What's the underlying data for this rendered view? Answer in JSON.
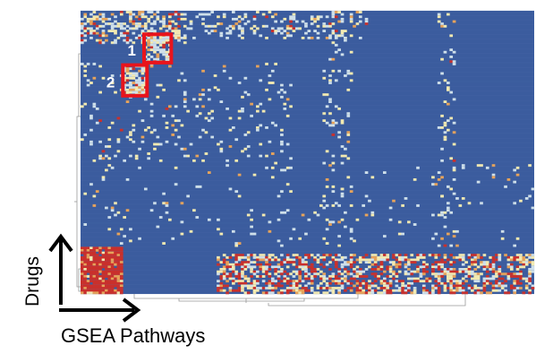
{
  "chart_data": {
    "type": "heatmap",
    "title": "",
    "xlabel": "GSEA Pathways",
    "ylabel": "Drugs",
    "grid": false,
    "legend": "none",
    "rows": 120,
    "cols": 150,
    "colors": {
      "low": "#3b5c9e",
      "light": "#cfe0ea",
      "mid": "#f3eab1",
      "orange": "#e7a35a",
      "high": "#c9302c",
      "highlight_box": "#e8141c",
      "axis_arrow": "#000000"
    },
    "highlight_boxes": [
      {
        "label": "1",
        "row_range": [
          10,
          22
        ],
        "col_range": [
          21,
          30
        ]
      },
      {
        "label": "2",
        "row_range": [
          23,
          36
        ],
        "col_range": [
          14,
          22
        ]
      }
    ],
    "enriched_regions": [
      {
        "row_range": [
          0,
          14
        ],
        "col_range": [
          0,
          35
        ],
        "density": 0.45,
        "red_share": 0.12
      },
      {
        "row_range": [
          0,
          12
        ],
        "col_range": [
          35,
          95
        ],
        "density": 0.2,
        "red_share": 0.05
      },
      {
        "row_range": [
          10,
          22
        ],
        "col_range": [
          21,
          30
        ],
        "density": 0.7,
        "red_share": 0.1
      },
      {
        "row_range": [
          23,
          36
        ],
        "col_range": [
          14,
          22
        ],
        "density": 0.75,
        "red_share": 0.15
      },
      {
        "row_range": [
          22,
          65
        ],
        "col_range": [
          0,
          70
        ],
        "density": 0.07,
        "red_share": 0.02
      },
      {
        "row_range": [
          65,
          100
        ],
        "col_range": [
          0,
          150
        ],
        "density": 0.03,
        "red_share": 0.0
      },
      {
        "row_range": [
          100,
          120
        ],
        "col_range": [
          0,
          14
        ],
        "density": 0.95,
        "red_share": 0.8
      },
      {
        "row_range": [
          103,
          120
        ],
        "col_range": [
          45,
          150
        ],
        "density": 0.55,
        "red_share": 0.35
      },
      {
        "row_range": [
          0,
          100
        ],
        "col_range": [
          80,
          90
        ],
        "density": 0.12,
        "red_share": 0.02
      },
      {
        "row_range": [
          0,
          100
        ],
        "col_range": [
          118,
          124
        ],
        "density": 0.1,
        "red_share": 0.02
      }
    ]
  }
}
